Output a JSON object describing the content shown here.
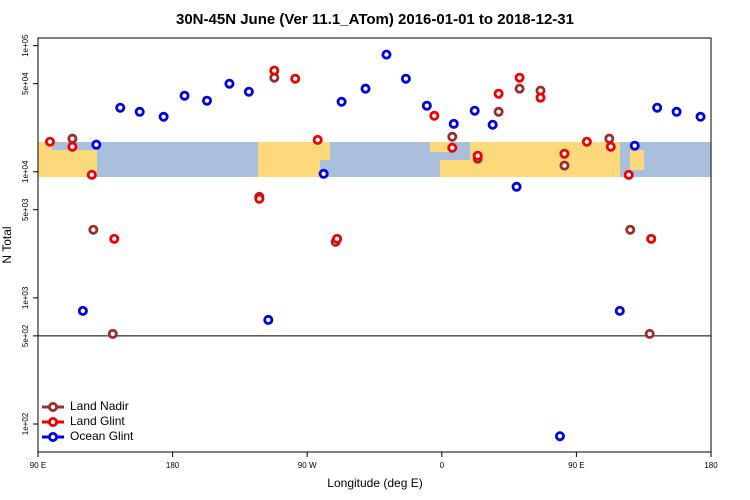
{
  "chart_data": {
    "type": "scatter",
    "title": "30N-45N June (Ver 11.1_ATom)   2016-01-01 to 2018-12-31",
    "x_label": "Longitude (deg E)",
    "y_label": "N Total",
    "log_y": true,
    "legend": "lower left",
    "reference_line": 500,
    "xlim": [
      90,
      540
    ],
    "ylim": [
      60,
      115000
    ],
    "xticks": [
      {
        "value": 90,
        "label": "90 E"
      },
      180,
      {
        "value": 270,
        "label": "90 W"
      },
      {
        "value": 360,
        "label": "0"
      },
      {
        "value": 450,
        "label": "90 E"
      },
      {
        "value": 540,
        "label": "180"
      }
    ],
    "yticks": [
      {
        "value": 100000,
        "label": "1e+05"
      },
      {
        "value": 50000,
        "label": "5e+04"
      },
      {
        "value": 10000,
        "label": "1e+04"
      },
      {
        "value": 5000,
        "label": "5e+03"
      },
      {
        "value": 1000,
        "label": "1e+03"
      },
      {
        "value": 500,
        "label": "5e+02"
      },
      {
        "value": 100,
        "label": "1e+02"
      }
    ],
    "series": [
      {
        "name": "Land Nadir",
        "color": "#9b2d2d",
        "x": [
          113,
          127,
          140,
          238,
          248,
          289,
          367,
          384,
          398,
          412,
          426,
          442,
          472,
          486,
          499
        ],
        "values": [
          18300,
          3470,
          518,
          6340,
          55700,
          2780,
          18950,
          12700,
          29900,
          45600,
          44000,
          11200,
          18300,
          3470,
          518
        ]
      },
      {
        "name": "Land Glint",
        "color": "#ee0000",
        "x": [
          98,
          113,
          126,
          141,
          238,
          248,
          262,
          277,
          290,
          355,
          367,
          384,
          398,
          412,
          426,
          442,
          457,
          473,
          485,
          500
        ],
        "values": [
          17300,
          15800,
          9460,
          2940,
          6110,
          63400,
          54700,
          17900,
          2940,
          27800,
          15500,
          13400,
          41600,
          55700,
          38700,
          13900,
          17300,
          15800,
          9460,
          2940
        ]
      },
      {
        "name": "Ocean Glint",
        "color": "#0000e6",
        "x": [
          120,
          129,
          145,
          158,
          174,
          188,
          203,
          218,
          231,
          244,
          281,
          293,
          309,
          323,
          336,
          350,
          368,
          382,
          394,
          410,
          439,
          479,
          489,
          504,
          517,
          533
        ],
        "values": [
          789,
          16400,
          32200,
          29900,
          27300,
          40100,
          36600,
          49900,
          43100,
          669,
          9640,
          35900,
          45600,
          84900,
          54700,
          33400,
          24000,
          30500,
          23600,
          7600,
          80,
          789,
          16100,
          32200,
          29900,
          27300
        ]
      }
    ]
  }
}
